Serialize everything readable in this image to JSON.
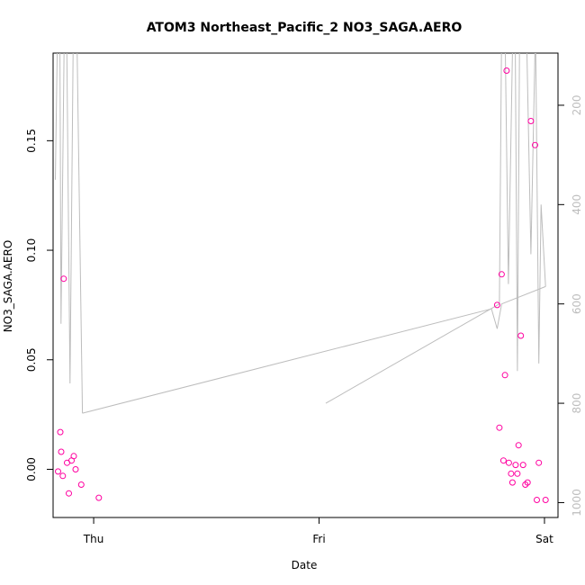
{
  "chart_data": {
    "type": "scatter",
    "title": "ATOM3 Northeast_Pacific_2 NO3_SAGA.AERO",
    "xlabel": "Date",
    "ylabel": "NO3_SAGA.AERO",
    "x_ticks": [
      {
        "value": 1.0,
        "label": "Thu"
      },
      {
        "value": 2.0,
        "label": "Fri"
      },
      {
        "value": 3.0,
        "label": "Sat"
      }
    ],
    "y_ticks": [
      0.0,
      0.05,
      0.1,
      0.15
    ],
    "y_tick_labels": [
      "0.00",
      "0.05",
      "0.10",
      "0.15"
    ],
    "y_right_ticks": [
      200,
      400,
      600,
      800,
      1000
    ],
    "y_right_tick_labels": [
      "200",
      "400",
      "600",
      "800",
      "1000"
    ],
    "xlim": [
      0.82,
      3.06
    ],
    "ylim": [
      -0.022,
      0.19
    ],
    "y_right_lim": [
      1030,
      95
    ],
    "colors": {
      "points": "#ff00a0",
      "pressure_line": "#bdbdbd",
      "axis": "#000000"
    },
    "series": [
      {
        "kind": "points",
        "x": [
          0.842,
          0.852,
          0.856,
          0.863,
          0.867,
          0.882,
          0.89,
          0.902,
          0.912,
          0.92,
          0.945,
          1.023,
          2.79,
          2.8,
          2.81,
          2.818,
          2.825,
          2.832,
          2.842,
          2.852,
          2.858,
          2.872,
          2.88,
          2.885,
          2.895,
          2.905,
          2.915,
          2.925,
          2.94,
          2.958,
          2.966,
          2.975,
          3.005
        ],
        "y": [
          -0.001,
          0.017,
          0.008,
          -0.003,
          0.087,
          0.003,
          -0.011,
          0.004,
          0.006,
          0.0,
          -0.007,
          -0.013,
          0.075,
          0.019,
          0.089,
          0.004,
          0.043,
          0.182,
          0.003,
          -0.002,
          -0.006,
          0.002,
          -0.002,
          0.011,
          0.061,
          0.002,
          -0.007,
          -0.006,
          0.159,
          0.148,
          -0.014,
          0.003,
          -0.014
        ]
      },
      {
        "kind": "pressure_line",
        "segments": [
          {
            "x": [
              0.83,
              0.84,
              0.85,
              0.855,
              0.87,
              0.88,
              0.895,
              0.91,
              0.925,
              0.95
            ],
            "y": [
              350,
              40,
              40,
              640,
              40,
              40,
              760,
              40,
              40,
              820
            ]
          },
          {
            "x": [
              0.95,
              2.765
            ],
            "y": [
              820,
              610
            ]
          },
          {
            "x": [
              2.03,
              2.8,
              2.81,
              2.825,
              2.84,
              2.86,
              2.87,
              2.88,
              2.89,
              2.905,
              2.92,
              2.94,
              2.96,
              2.975,
              2.985,
              3.005
            ],
            "y": [
              800,
              600,
              40,
              40,
              560,
              40,
              40,
              735,
              40,
              40,
              40,
              500,
              40,
              720,
              400,
              565
            ]
          },
          {
            "x": [
              2.765,
              2.79,
              2.81,
              3.005
            ],
            "y": [
              610,
              650,
              600,
              565
            ]
          }
        ]
      }
    ]
  }
}
